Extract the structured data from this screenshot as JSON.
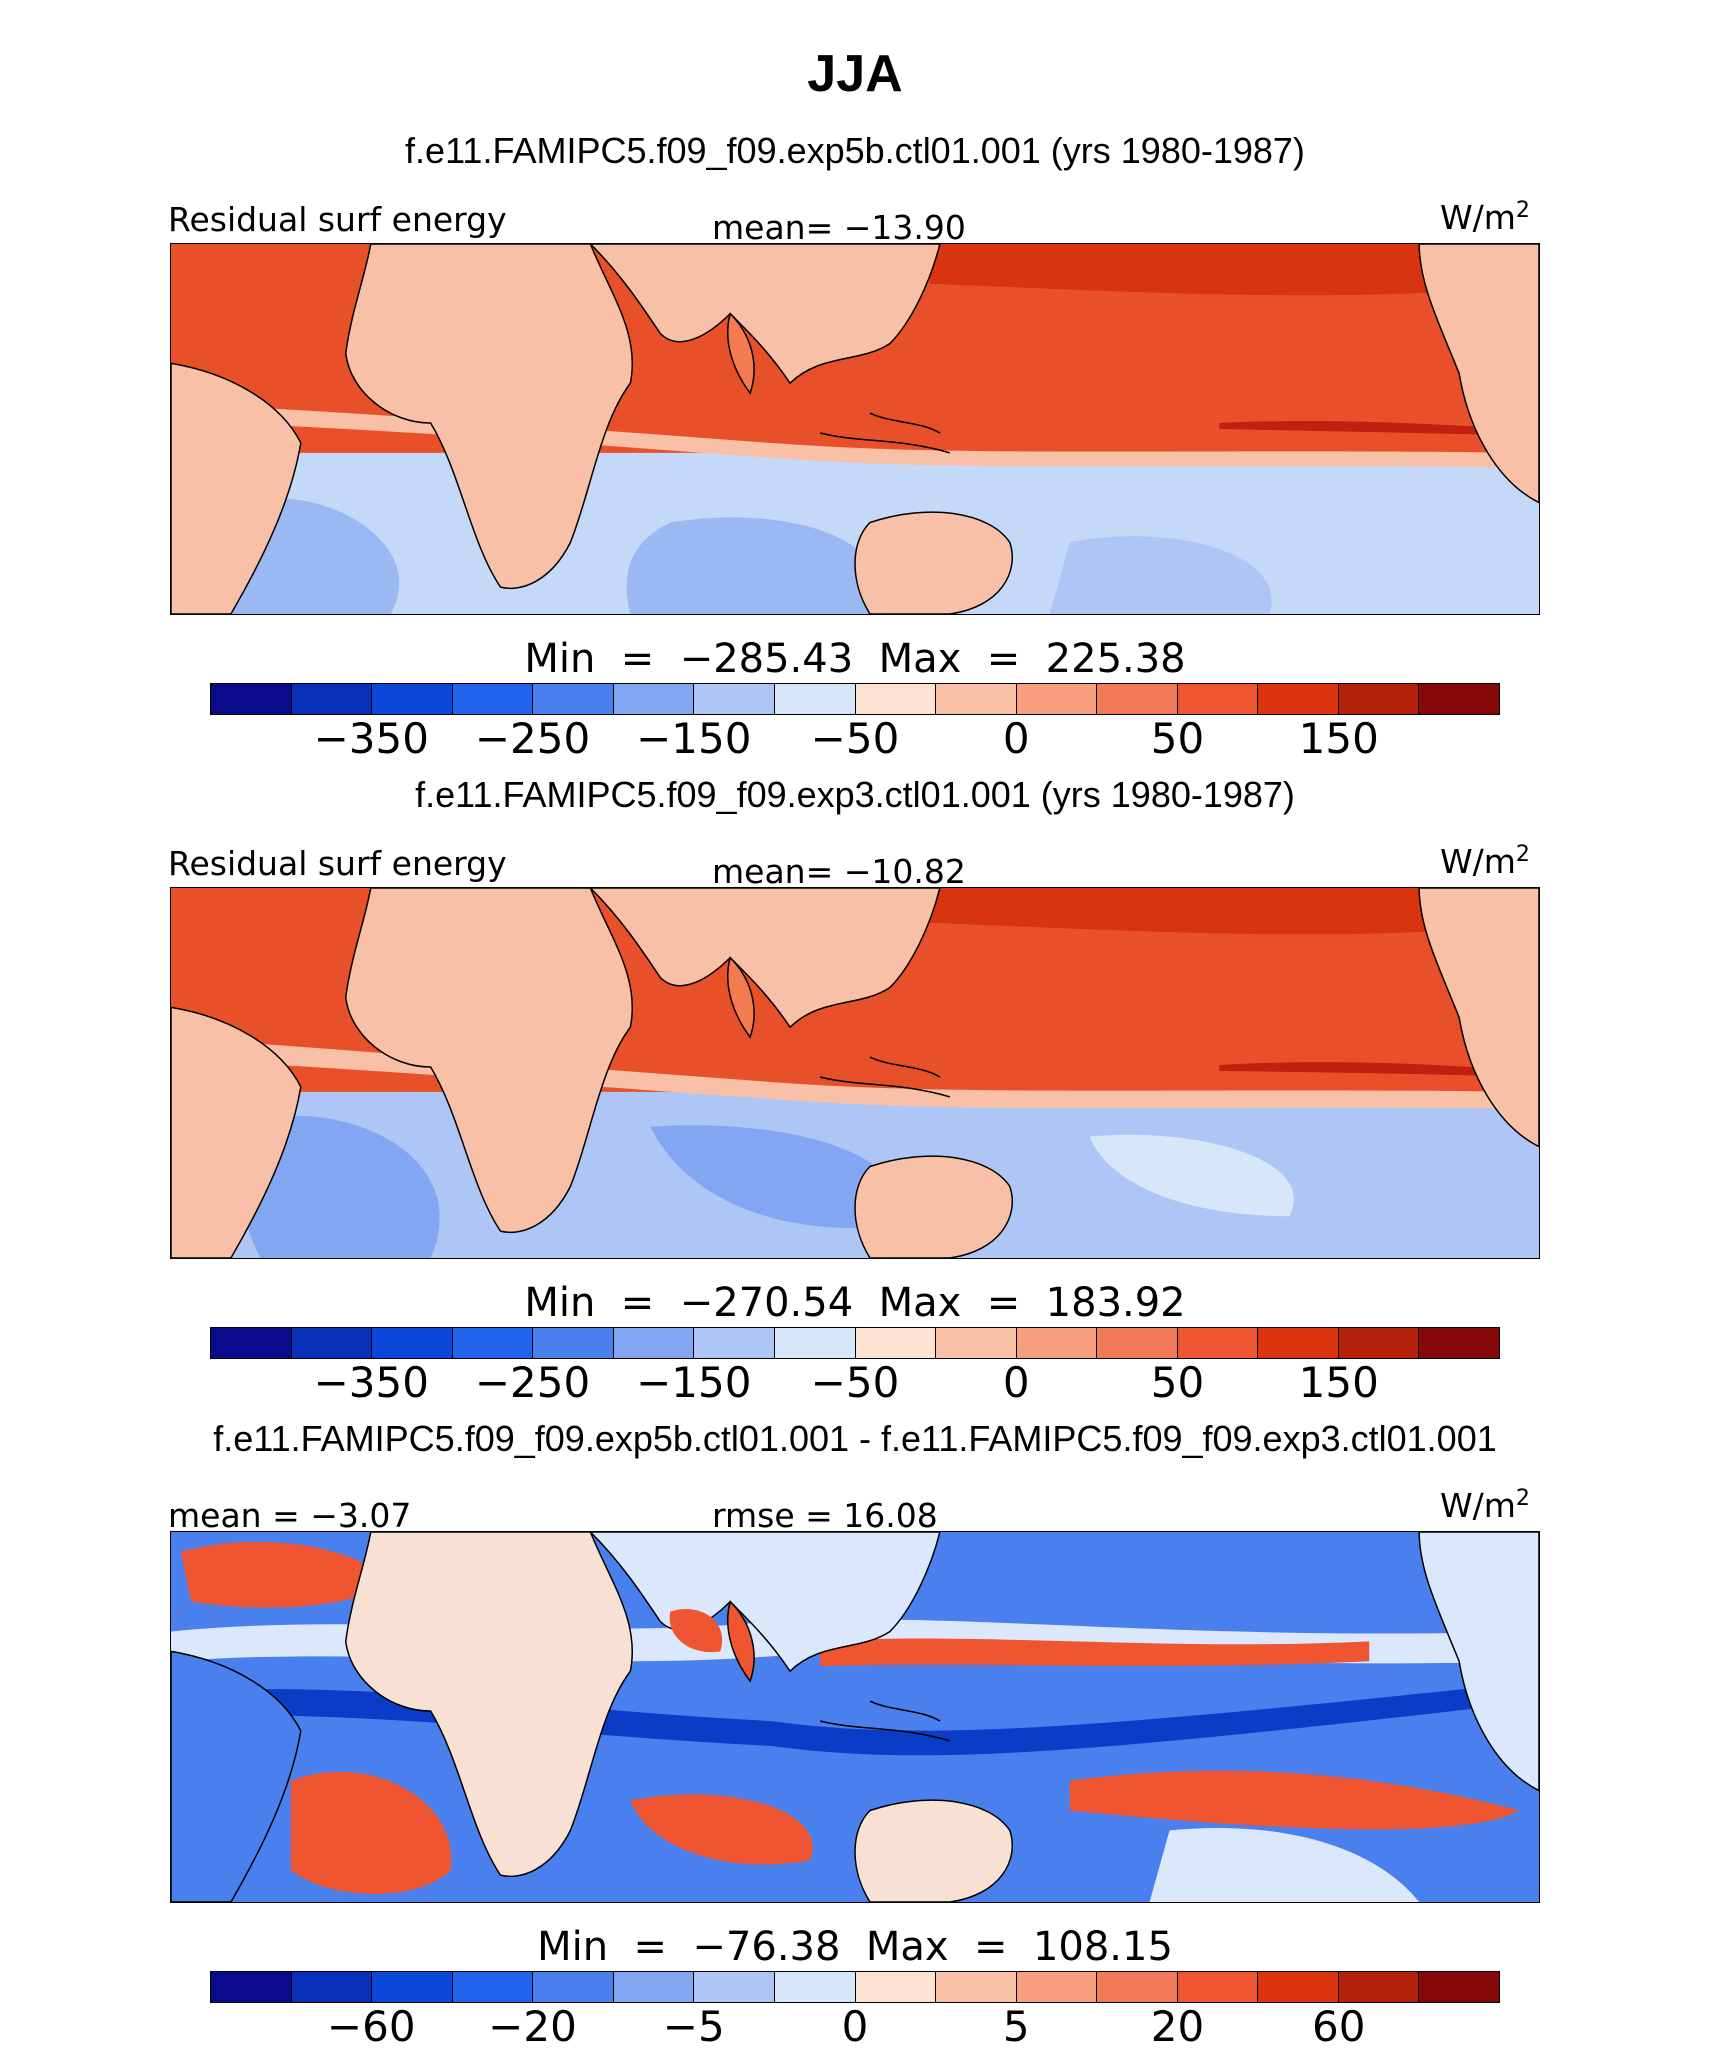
{
  "title": "JJA",
  "panels": [
    {
      "case_title": "f.e11.FAMIPC5.f09_f09.exp5b.ctl01.001 (yrs 1980-1987)",
      "left_label": "Residual surf energy",
      "center_label": "mean= −13.90",
      "units": "W/m²",
      "minmax": "Min  =  −285.43  Max  =  225.38",
      "colorbar_ticks": [
        "−350",
        "−250",
        "−150",
        "−50",
        "0",
        "50",
        "150"
      ],
      "pattern": "main"
    },
    {
      "case_title": "f.e11.FAMIPC5.f09_f09.exp3.ctl01.001 (yrs 1980-1987)",
      "left_label": "Residual surf energy",
      "center_label": "mean= −10.82",
      "units": "W/m²",
      "minmax": "Min  =  −270.54  Max  =  183.92",
      "colorbar_ticks": [
        "−350",
        "−250",
        "−150",
        "−50",
        "0",
        "50",
        "150"
      ],
      "pattern": "main"
    },
    {
      "case_title": "f.e11.FAMIPC5.f09_f09.exp5b.ctl01.001 - f.e11.FAMIPC5.f09_f09.exp3.ctl01.001",
      "left_label": "mean =   −3.07",
      "center_label": "rmse =   16.08",
      "units": "W/m²",
      "minmax": "Min  =  −76.38  Max  =  108.15",
      "colorbar_ticks": [
        "−60",
        "−20",
        "−5",
        "0",
        "5",
        "20",
        "60"
      ],
      "pattern": "diff"
    }
  ],
  "colorbar_colors": [
    "#0a0a8c",
    "#0a2fb8",
    "#0a46d8",
    "#2263ec",
    "#4a80ee",
    "#82a6f2",
    "#aec6f6",
    "#d8e6fa",
    "#fde2d2",
    "#f9c0a8",
    "#f79e7e",
    "#f37a58",
    "#ee5530",
    "#dd3410",
    "#b5200a",
    "#870808"
  ],
  "map_colors": {
    "ocean_warm": "#e8502a",
    "ocean_hot": "#d93410",
    "ocean_mid": "#f47a50",
    "land": "#f9c0a8",
    "cool_light": "#c4d8f8",
    "cool_mid": "#9ab8f2",
    "cool_deep": "#4a7ee8",
    "diff_blue": "#4a80ee",
    "diff_deep_blue": "#0a3cc8",
    "diff_red": "#ee5530",
    "diff_light": "#dbe8fb"
  }
}
